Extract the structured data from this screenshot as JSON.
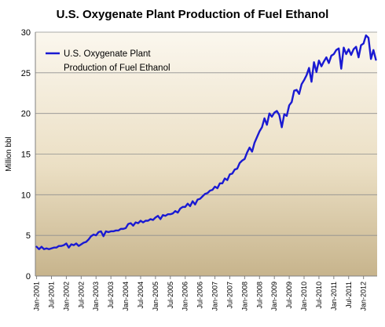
{
  "chart_data": {
    "type": "line",
    "title": "U.S. Oxygenate Plant Production of Fuel Ethanol",
    "xlabel": "",
    "ylabel": "Million bbl",
    "ylim": [
      0,
      30
    ],
    "yticks": [
      0,
      5,
      10,
      15,
      20,
      25,
      30
    ],
    "grid": true,
    "legend_position": "top-left",
    "x_tick_labels": [
      "Jan-2001",
      "Jul-2001",
      "Jan-2002",
      "Jul-2002",
      "Jan-2003",
      "Jul-2003",
      "Jan-2004",
      "Jul-2004",
      "Jan-2005",
      "Jul-2005",
      "Jan-2006",
      "Jul-2006",
      "Jan-2007",
      "Jul-2007",
      "Jan-2008",
      "Jul-2008",
      "Jan-2009",
      "Jul-2009",
      "Jan-2010",
      "Jul-2010",
      "Jan-2011",
      "Jul-2011",
      "Jan-2012"
    ],
    "series": [
      {
        "name": "U.S. Oxygenate Plant Production of Fuel Ethanol",
        "color": "#1a1ad2",
        "start": "2001-01",
        "values": [
          3.6,
          3.3,
          3.6,
          3.3,
          3.4,
          3.3,
          3.4,
          3.5,
          3.5,
          3.7,
          3.7,
          3.8,
          4.0,
          3.5,
          3.9,
          3.8,
          4.0,
          3.7,
          3.9,
          4.1,
          4.2,
          4.5,
          4.9,
          5.1,
          5.0,
          5.4,
          5.5,
          4.9,
          5.5,
          5.4,
          5.5,
          5.5,
          5.6,
          5.6,
          5.8,
          5.8,
          5.9,
          6.4,
          6.5,
          6.2,
          6.6,
          6.5,
          6.8,
          6.6,
          6.8,
          6.8,
          7.0,
          6.9,
          7.2,
          7.4,
          7.0,
          7.5,
          7.4,
          7.6,
          7.6,
          7.7,
          8.0,
          7.8,
          8.3,
          8.5,
          8.5,
          8.9,
          8.6,
          9.2,
          8.8,
          9.4,
          9.5,
          9.8,
          10.1,
          10.2,
          10.5,
          10.6,
          11.0,
          10.8,
          11.4,
          11.4,
          12.0,
          11.8,
          12.5,
          12.6,
          13.1,
          13.2,
          13.9,
          14.2,
          14.4,
          15.2,
          15.8,
          15.3,
          16.4,
          17.1,
          17.8,
          18.3,
          19.4,
          18.6,
          20.0,
          19.6,
          20.1,
          20.3,
          19.8,
          18.3,
          19.9,
          19.7,
          21.0,
          21.4,
          22.8,
          22.9,
          22.4,
          23.6,
          24.1,
          24.7,
          25.6,
          23.9,
          26.3,
          25.1,
          26.5,
          25.8,
          26.4,
          26.9,
          26.2,
          27.1,
          27.3,
          27.8,
          28.0,
          25.5,
          28.1,
          27.3,
          27.9,
          27.2,
          27.9,
          28.2,
          26.9,
          28.4,
          28.6,
          29.6,
          29.3,
          26.7,
          27.8,
          26.6
        ]
      }
    ]
  }
}
